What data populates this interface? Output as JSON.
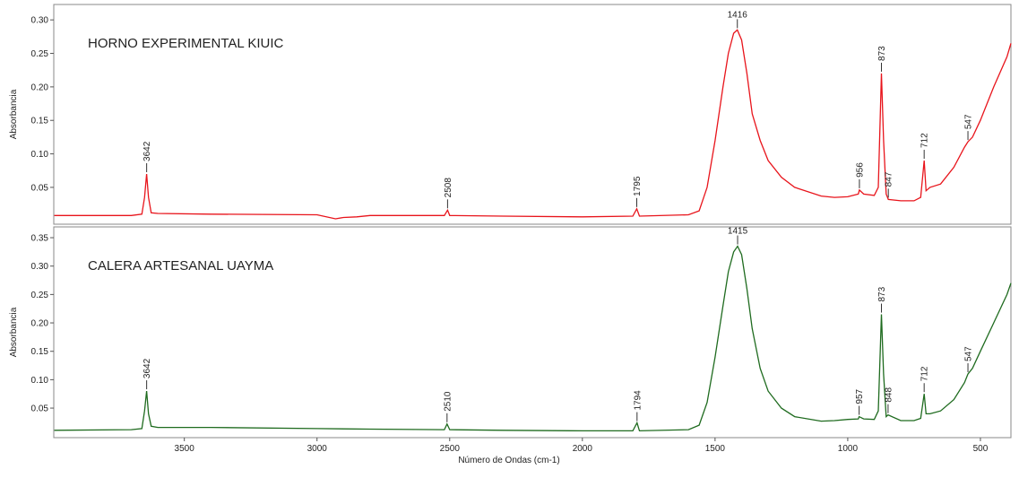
{
  "chart_data": [
    {
      "type": "line",
      "title": "HORNO EXPERIMENTAL KIUIC",
      "ylabel": "Absorbancia",
      "color": "#e8141b",
      "xlim": [
        3992,
        385
      ],
      "ylim": [
        -0.005,
        0.323
      ],
      "yticks": [
        {
          "value": 0.3,
          "label": "0.30"
        },
        0.25,
        {
          "value": 0.2,
          "label": "0.20"
        },
        0.15,
        {
          "value": 0.1,
          "label": "0.10"
        },
        0.05
      ],
      "x": [
        3990,
        3700,
        3660,
        3650,
        3642,
        3635,
        3625,
        3600,
        3400,
        3000,
        2930,
        2900,
        2850,
        2800,
        2520,
        2508,
        2500,
        2300,
        2000,
        1810,
        1795,
        1785,
        1600,
        1560,
        1530,
        1500,
        1470,
        1450,
        1430,
        1416,
        1400,
        1380,
        1360,
        1330,
        1300,
        1250,
        1200,
        1100,
        1050,
        1000,
        960,
        956,
        940,
        900,
        885,
        873,
        865,
        855,
        847,
        800,
        750,
        725,
        712,
        705,
        690,
        650,
        600,
        560,
        547,
        530,
        500,
        450,
        400,
        385
      ],
      "values": [
        0.008,
        0.008,
        0.01,
        0.035,
        0.07,
        0.035,
        0.012,
        0.011,
        0.01,
        0.009,
        0.003,
        0.005,
        0.006,
        0.008,
        0.008,
        0.016,
        0.008,
        0.007,
        0.006,
        0.007,
        0.018,
        0.007,
        0.009,
        0.015,
        0.05,
        0.12,
        0.2,
        0.25,
        0.28,
        0.285,
        0.27,
        0.22,
        0.16,
        0.12,
        0.09,
        0.065,
        0.05,
        0.037,
        0.035,
        0.036,
        0.04,
        0.046,
        0.04,
        0.038,
        0.05,
        0.22,
        0.12,
        0.04,
        0.032,
        0.03,
        0.03,
        0.035,
        0.09,
        0.045,
        0.05,
        0.055,
        0.08,
        0.11,
        0.118,
        0.125,
        0.15,
        0.2,
        0.245,
        0.265
      ],
      "peaks": [
        3642,
        2508,
        1795,
        1416,
        956,
        873,
        847,
        712,
        547
      ]
    },
    {
      "type": "line",
      "title": "CALERA ARTESANAL UAYMA",
      "ylabel": "Absorbancia",
      "xlabel": "Número de Ondas (cm-1)",
      "color": "#1f6b1f",
      "xlim": [
        3992,
        385
      ],
      "ylim": [
        -0.002,
        0.369
      ],
      "yticks": [
        0.35,
        {
          "value": 0.3,
          "label": "0.30"
        },
        0.25,
        {
          "value": 0.2,
          "label": "0.20"
        },
        0.15,
        {
          "value": 0.1,
          "label": "0.10"
        },
        0.05
      ],
      "xticks": [
        3500,
        3000,
        2500,
        2000,
        1500,
        1000,
        500
      ],
      "x": [
        3990,
        3700,
        3660,
        3650,
        3642,
        3635,
        3625,
        3600,
        3400,
        3000,
        2800,
        2520,
        2510,
        2500,
        2300,
        2000,
        1810,
        1794,
        1785,
        1600,
        1560,
        1530,
        1500,
        1470,
        1450,
        1430,
        1415,
        1400,
        1380,
        1360,
        1330,
        1300,
        1250,
        1200,
        1100,
        1050,
        1000,
        960,
        957,
        940,
        900,
        885,
        873,
        865,
        855,
        848,
        800,
        750,
        725,
        712,
        705,
        690,
        650,
        600,
        560,
        547,
        530,
        500,
        450,
        400,
        385
      ],
      "values": [
        0.011,
        0.012,
        0.014,
        0.045,
        0.08,
        0.04,
        0.018,
        0.016,
        0.016,
        0.014,
        0.013,
        0.012,
        0.022,
        0.012,
        0.011,
        0.01,
        0.01,
        0.024,
        0.01,
        0.012,
        0.02,
        0.06,
        0.14,
        0.23,
        0.29,
        0.325,
        0.335,
        0.32,
        0.26,
        0.19,
        0.12,
        0.08,
        0.05,
        0.035,
        0.027,
        0.028,
        0.03,
        0.031,
        0.035,
        0.031,
        0.03,
        0.045,
        0.215,
        0.11,
        0.035,
        0.038,
        0.028,
        0.028,
        0.032,
        0.075,
        0.04,
        0.04,
        0.045,
        0.065,
        0.095,
        0.11,
        0.12,
        0.15,
        0.2,
        0.25,
        0.27
      ],
      "peaks": [
        3642,
        2510,
        1794,
        1415,
        957,
        873,
        848,
        712,
        547
      ]
    }
  ]
}
